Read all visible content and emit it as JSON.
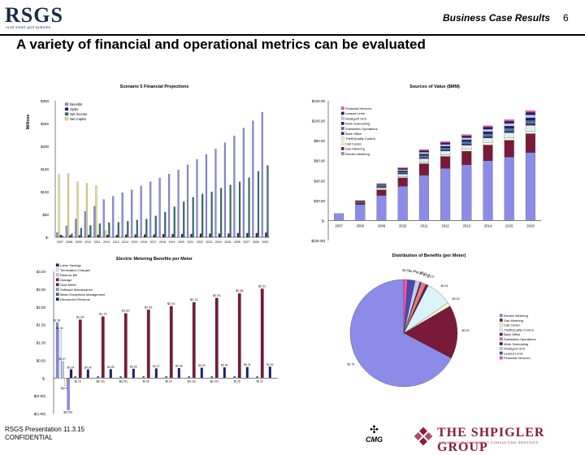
{
  "header": {
    "logo": "RSGS",
    "logo_tagline": "rural smart grid systems",
    "section": "Business Case Results",
    "page": "6"
  },
  "title": "A variety of financial and operational metrics can be evaluated",
  "footer": {
    "line1": "RSGS Presentation 11.3.15",
    "line2": "CONFIDENTIAL",
    "cmg": "CMG",
    "sg_name": "THE SHPIGLER GROUP",
    "sg_sub": "STRATEGY MANAGEMENT CONSULTING SERVICES"
  },
  "colors": {
    "purple": "#8b8be8",
    "navy": "#1f1f6b",
    "teal": "#2e6b6b",
    "yellow": "#e8e08a",
    "maroon": "#7a1a3a",
    "lightcyan": "#d8f4f8",
    "pink": "#ff4fa6"
  },
  "chart_data": [
    {
      "id": "fin",
      "type": "bar",
      "title": "Scenario 5 Financial Projections",
      "ylabel": "Millions",
      "yticks": [
        "$-",
        "$50",
        "$100",
        "$150",
        "$200",
        "$250",
        "$300"
      ],
      "ylim": [
        0,
        300
      ],
      "categories": [
        "2007",
        "2008",
        "2009",
        "2010",
        "2011",
        "2012",
        "2013",
        "2014",
        "2015",
        "2016",
        "2017",
        "2018",
        "2019",
        "2020",
        "2021",
        "2022",
        "2023",
        "2024",
        "2025",
        "2026",
        "2027",
        "2028",
        "2029"
      ],
      "series": [
        {
          "name": "Benefits",
          "values": [
            10,
            25,
            40,
            57,
            68,
            83,
            90,
            98,
            104,
            113,
            122,
            130,
            139,
            148,
            159,
            171,
            182,
            194,
            208,
            223,
            240,
            256,
            275
          ]
        },
        {
          "name": "OpEx",
          "values": [
            5,
            4,
            4,
            5,
            5,
            5,
            5,
            6,
            6,
            6,
            6,
            7,
            7,
            7,
            7,
            8,
            8,
            8,
            8,
            9,
            9,
            9,
            10
          ]
        },
        {
          "name": "Net Income",
          "values": [
            3,
            8,
            20,
            26,
            30,
            32,
            33,
            35,
            38,
            40,
            47,
            55,
            67,
            78,
            88,
            95,
            100,
            108,
            115,
            122,
            131,
            145,
            158
          ]
        },
        {
          "name": "Net CapEx",
          "values": [
            138,
            140,
            122,
            118,
            113,
            15,
            0,
            0,
            0,
            0,
            0,
            0,
            0,
            0,
            0,
            0,
            0,
            0,
            0,
            0,
            0,
            0,
            0
          ]
        }
      ]
    },
    {
      "id": "sov",
      "type": "bar",
      "stacked": true,
      "title": "Sources of Value ($MM)",
      "yticks": [
        "$(20.00)",
        "$-",
        "$20.00",
        "$40.00",
        "$60.00",
        "$80.00",
        "$100.00",
        "$120.00"
      ],
      "ylim": [
        -20,
        120
      ],
      "categories": [
        "2007",
        "2008",
        "2009",
        "2010",
        "2011",
        "2012",
        "2013",
        "2014",
        "2015",
        "2016"
      ],
      "legend": [
        "Financial Services",
        "Leased Lines",
        "Intelligent Grid",
        "Work Scheduling",
        "Substation Operations",
        "Back Office",
        "Theft/Quality Control",
        "Call Center",
        "Gas Metering",
        "Electric Metering"
      ],
      "totals": [
        7,
        20,
        37,
        53,
        71,
        79,
        86,
        95,
        101,
        110
      ],
      "bottom_share": [
        1,
        0.8,
        0.68,
        0.65,
        0.64,
        0.66,
        0.65,
        0.63,
        0.63,
        0.62
      ]
    },
    {
      "id": "emb",
      "type": "bar",
      "title": "Electric Metering Benefits per Meter",
      "yticks": [
        "$(1.00)",
        "$(0.50)",
        "$-",
        "$0.50",
        "$1.00",
        "$1.50",
        "$2.00",
        "$2.50",
        "$3.00"
      ],
      "ylim": [
        -1,
        3
      ],
      "legend": [
        "Labor Savings",
        "Termination Charges",
        "Read-to-Bill",
        "Salvage",
        "Slow Meter",
        "Software Maintenance",
        "Meter Exceptions Management",
        "Disconnect Revenue"
      ],
      "slow_meter_values": [
        "$1.64",
        "$1.73",
        "$1.82",
        "$1.92",
        "$2.02",
        "$2.13",
        "$2.25",
        "$2.38",
        "$2.51"
      ],
      "first_group_values": [
        "$1.56",
        "$1.34",
        "$0.47",
        "$(0.22)",
        "$(0.90)",
        "$0.24"
      ],
      "small_values": [
        "$0.24",
        "$0.25",
        "$0.26",
        "$0.27",
        "$0.28",
        "$0.29",
        "$0.30",
        "$0.31",
        "$0.32",
        "$0.16",
        "$(0.16)",
        "$(0.02)",
        "$0.05"
      ]
    },
    {
      "id": "dob",
      "type": "pie",
      "title": "Distribution of Benefits (per Meter)",
      "slices": [
        {
          "label": "Electric Metering",
          "value": 1.79,
          "text": "$1.79"
        },
        {
          "label": "Gas Metering",
          "value": 0.43,
          "text": "$0.43"
        },
        {
          "label": "Call Center",
          "value": 0.03,
          "text": "$0.03"
        },
        {
          "label": "Theft/Quality Control",
          "value": 0.21,
          "text": "$0.21"
        },
        {
          "label": "Back Office",
          "value": 0.02,
          "text": "$0.02"
        },
        {
          "label": "Substation Operations",
          "value": 0.04,
          "text": "$0.04"
        },
        {
          "label": "Work Scheduling",
          "value": 0.01,
          "text": "$0.01"
        },
        {
          "label": "Intelligent Grid",
          "value": 0.04,
          "text": "$0.04"
        },
        {
          "label": "Leased Lines",
          "value": 0.06,
          "text": "$0.06"
        },
        {
          "label": "Financial Services",
          "value": 0.03,
          "text": "$0.03"
        }
      ],
      "outer_labels": [
        "$0.03",
        "$0.06",
        "$0.04",
        "$0.01",
        "$0.02",
        "$0.04",
        "$0.21",
        "$0.03",
        "$0.43",
        "$1.79"
      ]
    }
  ]
}
